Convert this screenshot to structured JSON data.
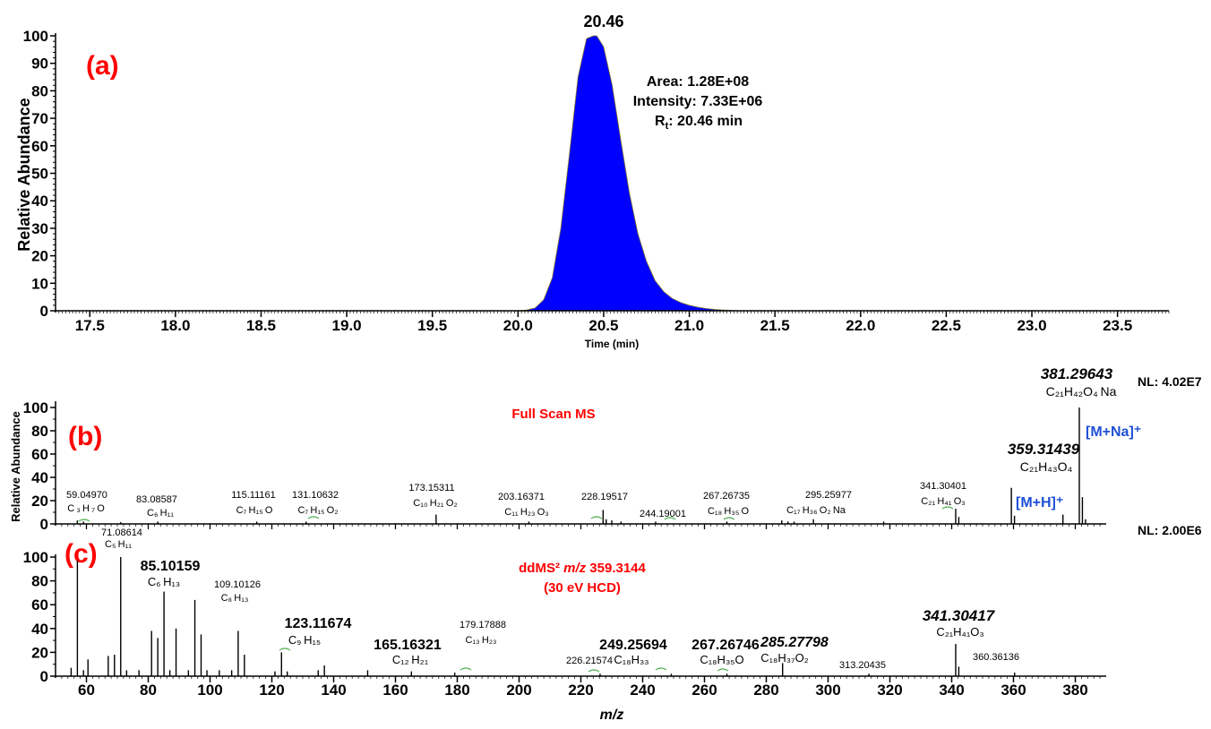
{
  "colors": {
    "peak_fill": "#0000ff",
    "panel_label": "#ff0000",
    "ion_label": "#1f4fd8",
    "text": "#000000",
    "isotope_mark": "#4caf50"
  },
  "chart_data": [
    {
      "type": "area",
      "panel": "(a)",
      "ylabel": "Relative Abundance",
      "xlabel": "Time (min)",
      "xlim": [
        17.3,
        23.8
      ],
      "ylim": [
        0,
        100
      ],
      "xticks": [
        "17.5",
        "18.0",
        "18.5",
        "19.0",
        "19.5",
        "20.0",
        "20.5",
        "21.0",
        "21.5",
        "22.0",
        "22.5",
        "23.0",
        "23.5"
      ],
      "yticks": [
        "0",
        "10",
        "20",
        "30",
        "40",
        "50",
        "60",
        "70",
        "80",
        "90",
        "100"
      ],
      "peak_label": "20.46",
      "info": {
        "area": "Area: 1.28E+08",
        "intensity": "Intensity: 7.33E+06",
        "rt_prefix": "R",
        "rt_sub": "t",
        "rt_value": ": 20.46 min"
      },
      "x": [
        17.3,
        20.0,
        20.05,
        20.1,
        20.15,
        20.2,
        20.25,
        20.3,
        20.35,
        20.4,
        20.44,
        20.46,
        20.5,
        20.55,
        20.6,
        20.65,
        20.7,
        20.75,
        20.8,
        20.85,
        20.9,
        20.95,
        21.0,
        21.05,
        21.1,
        21.15,
        21.2,
        21.25,
        21.3,
        23.8
      ],
      "y": [
        0,
        0,
        0.3,
        1,
        4,
        12,
        30,
        57,
        85,
        99,
        100,
        100,
        96,
        82,
        62,
        43,
        28,
        18,
        11,
        7,
        4.5,
        3,
        2,
        1.3,
        0.8,
        0.5,
        0.3,
        0.1,
        0,
        0
      ]
    },
    {
      "type": "bar",
      "panel": "(b)",
      "title": "Full Scan MS",
      "ylabel": "Relative Abundance",
      "nl": "NL: 4.02E7",
      "xlim": [
        50,
        390
      ],
      "ylim": [
        0,
        100
      ],
      "yticks": [
        "0",
        "20",
        "40",
        "60",
        "80",
        "100"
      ],
      "peaks": [
        [
          57.07,
          3
        ],
        [
          59.05,
          2
        ],
        [
          71.09,
          1.5
        ],
        [
          83.09,
          2
        ],
        [
          115.11,
          2
        ],
        [
          131.11,
          2
        ],
        [
          173.15,
          8
        ],
        [
          203.16,
          2
        ],
        [
          227.2,
          12
        ],
        [
          228.2,
          4
        ],
        [
          230.0,
          3
        ],
        [
          233.0,
          2
        ],
        [
          244.19,
          2
        ],
        [
          267.27,
          2
        ],
        [
          285.0,
          3
        ],
        [
          287.0,
          2
        ],
        [
          289.0,
          2
        ],
        [
          295.26,
          4
        ],
        [
          318.0,
          2
        ],
        [
          341.3,
          13
        ],
        [
          342.3,
          6
        ],
        [
          359.31,
          31
        ],
        [
          360.32,
          7
        ],
        [
          376.0,
          8
        ],
        [
          381.3,
          100
        ],
        [
          382.3,
          23
        ],
        [
          383.3,
          4
        ]
      ],
      "labels": [
        {
          "mz": "59.04970",
          "formula": "C ₃ H ₇ O"
        },
        {
          "mz": "83.08587",
          "formula": "C₆ H₁₁"
        },
        {
          "mz": "115.11161",
          "formula": "C₇ H₁₅ O"
        },
        {
          "mz": "131.10632",
          "formula": "C₇ H₁₅ O₂"
        },
        {
          "mz": "173.15311",
          "formula": "C₁₀ H₂₁ O₂"
        },
        {
          "mz": "203.16371",
          "formula": "C₁₁ H₂₃ O₃"
        },
        {
          "mz": "228.19517",
          "formula": ""
        },
        {
          "mz": "244.19001",
          "formula": ""
        },
        {
          "mz": "267.26735",
          "formula": "C₁₈ H₃₅ O"
        },
        {
          "mz": "295.25977",
          "formula": "C₁₇ H₃₆ O₂ Na"
        },
        {
          "mz": "341.30401",
          "formula": "C₂₁ H₄₁ O₃"
        },
        {
          "mz": "359.31439",
          "formula": "C₂₁H₄₃O₄"
        },
        {
          "mz": "381.29643",
          "formula": "C₂₁H₄₂O₄ Na"
        }
      ],
      "ions": {
        "mh": "[M+H]⁺",
        "mna": "[M+Na]⁺"
      }
    },
    {
      "type": "bar",
      "panel": "(c)",
      "title_line1_a": "ddMS² ",
      "title_line1_b": "m/z",
      "title_line1_c": " 359.3144",
      "title_line2": "(30 eV HCD)",
      "nl": "NL: 2.00E6",
      "xlabel": "m/z",
      "xlim": [
        50,
        390
      ],
      "ylim": [
        0,
        100
      ],
      "xticks": [
        "60",
        "80",
        "100",
        "120",
        "140",
        "160",
        "180",
        "200",
        "220",
        "240",
        "260",
        "280",
        "300",
        "320",
        "340",
        "360",
        "380"
      ],
      "yticks": [
        "0",
        "20",
        "40",
        "60",
        "80",
        "100"
      ],
      "peaks": [
        [
          55.05,
          7
        ],
        [
          57.07,
          97
        ],
        [
          59.05,
          5
        ],
        [
          60.5,
          14
        ],
        [
          67.05,
          17
        ],
        [
          69.07,
          18
        ],
        [
          71.09,
          100
        ],
        [
          73.0,
          5
        ],
        [
          77.0,
          5
        ],
        [
          81.07,
          38
        ],
        [
          83.09,
          32
        ],
        [
          85.1,
          71
        ],
        [
          87.0,
          5
        ],
        [
          89.0,
          40
        ],
        [
          93.0,
          5
        ],
        [
          95.09,
          64
        ],
        [
          97.1,
          35
        ],
        [
          99.0,
          5
        ],
        [
          103.0,
          5
        ],
        [
          107.0,
          5
        ],
        [
          109.1,
          38
        ],
        [
          111.12,
          18
        ],
        [
          121.0,
          4
        ],
        [
          123.12,
          20
        ],
        [
          125.0,
          4
        ],
        [
          135.0,
          5
        ],
        [
          137.0,
          9
        ],
        [
          151.0,
          5
        ],
        [
          165.16,
          4
        ],
        [
          179.18,
          3
        ],
        [
          226.22,
          2
        ],
        [
          249.26,
          2
        ],
        [
          267.27,
          2
        ],
        [
          285.28,
          11
        ],
        [
          313.2,
          2
        ],
        [
          341.3,
          27
        ],
        [
          342.3,
          8
        ],
        [
          360.36,
          3
        ]
      ],
      "labels": [
        {
          "mz": "71.08614",
          "formula": "C₅ H₁₁"
        },
        {
          "mz": "85.10159",
          "formula": "C₆ H₁₃"
        },
        {
          "mz": "109.10126",
          "formula": "C₈ H₁₃"
        },
        {
          "mz": "123.11674",
          "formula": "C₉ H₁₅"
        },
        {
          "mz": "165.16321",
          "formula": "C₁₂ H₂₁"
        },
        {
          "mz": "179.17888",
          "formula": "C₁₃ H₂₃"
        },
        {
          "mz": "226.21574",
          "formula": ""
        },
        {
          "mz": "249.25694",
          "formula": "C₁₈H₃₃"
        },
        {
          "mz": "267.26746",
          "formula": "C₁₈H₃₅O"
        },
        {
          "mz": "285.27798",
          "formula": "C₁₈H₃₇O₂"
        },
        {
          "mz": "313.20435",
          "formula": ""
        },
        {
          "mz": "341.30417",
          "formula": "C₂₁H₄₁O₃"
        },
        {
          "mz": "360.36136",
          "formula": ""
        }
      ]
    }
  ]
}
